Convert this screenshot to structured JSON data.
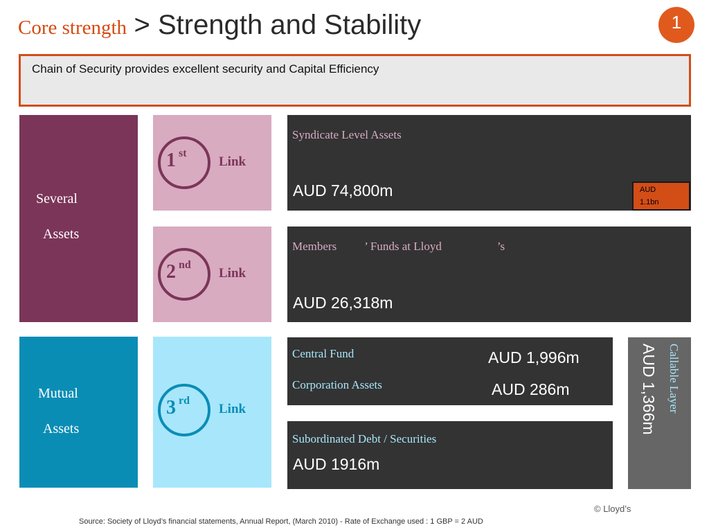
{
  "header": {
    "section_label": "Core strength",
    "separator": ">",
    "title": "Strength and Stability",
    "page_number": "1"
  },
  "summary": {
    "text": "Chain of Security provides excellent security and Capital Efficiency"
  },
  "asset_groups": {
    "several": {
      "line1": "Several",
      "line2": "Assets"
    },
    "mutual": {
      "line1": "Mutual",
      "line2": "Assets"
    }
  },
  "links": [
    {
      "number": "1",
      "suffix": "st",
      "word": "Link"
    },
    {
      "number": "2",
      "suffix": "nd",
      "word": "Link"
    },
    {
      "number": "3",
      "suffix": "rd",
      "word": "Link"
    }
  ],
  "panels": {
    "syndicate": {
      "label": "Syndicate Level Assets",
      "value": "AUD 74,800m",
      "badge_line1": "AUD",
      "badge_line2": "1.1bn"
    },
    "members": {
      "label_part1": "Members",
      "label_part2": "’ Funds at Lloyd",
      "label_part3": "’s",
      "value": "AUD 26,318m"
    },
    "central_fund": {
      "label": "Central Fund",
      "value": "AUD 1,996m"
    },
    "corporation_assets": {
      "label": "Corporation Assets",
      "value": "AUD 286m"
    },
    "subordinated": {
      "label": "Subordinated Debt /  Securities",
      "value": "AUD 1916m"
    },
    "callable": {
      "label": "Callable Layer",
      "value": "AUD 1,366m"
    }
  },
  "footer": {
    "copyright": "© Lloyd’s",
    "source": "Source: Society of Lloyd’s financial statements, Annual Report, (March 2010) - Rate of Exchange used : 1 GBP = 2 AUD"
  },
  "colors": {
    "accent_orange": "#d34d17",
    "plum": "#7b3558",
    "pink": "#d8abc1",
    "teal": "#0a8db5",
    "light_blue": "#a8e6fb",
    "dark_panel": "#333333",
    "grey_panel": "#666666"
  }
}
